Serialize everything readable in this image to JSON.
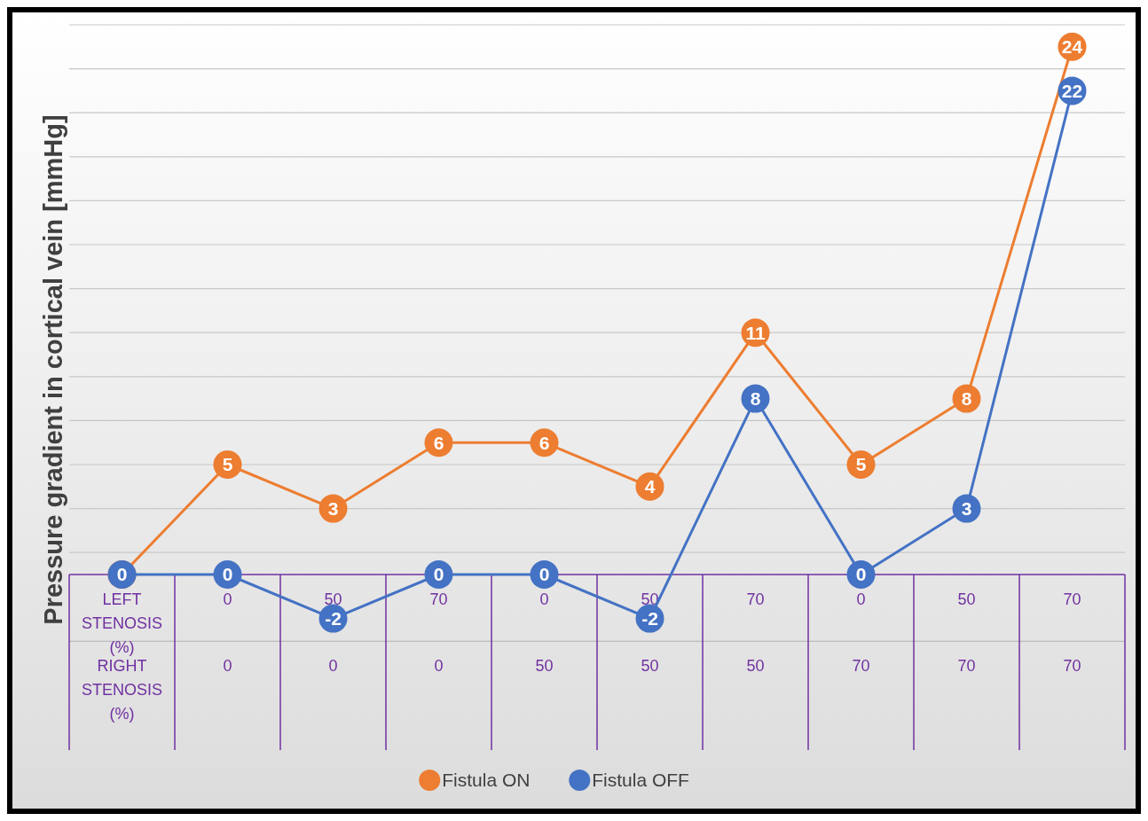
{
  "chart_data": {
    "type": "line",
    "ylabel": "Pressure gradient in cortical vein [mmHg]",
    "categories": [
      "LEFT STENOSIS (%)",
      "0",
      "50",
      "70",
      "0",
      "50",
      "70",
      "0",
      "50",
      "70"
    ],
    "annotations": [
      "RIGHT STENOSIS (%)",
      "0",
      "0",
      "0",
      "50",
      "50",
      "50",
      "70",
      "70",
      "70"
    ],
    "series": [
      {
        "name": "Fistula ON",
        "color": "#ed7d31",
        "values": [
          0,
          5,
          3,
          6,
          6,
          4,
          11,
          5,
          8,
          24
        ],
        "value_labels": [
          null,
          "5",
          "3",
          "6",
          "6",
          "4",
          "11",
          "5",
          "8",
          "24"
        ]
      },
      {
        "name": "Fistula OFF",
        "color": "#4472c4",
        "values": [
          0,
          0,
          -2,
          0,
          0,
          -2,
          8,
          0,
          3,
          22
        ],
        "value_labels": [
          "0",
          "0",
          "-2",
          "0",
          "0",
          "-2",
          "8",
          "0",
          "3",
          "22"
        ]
      }
    ],
    "yticks": [
      {
        "value": 1,
        "label": null
      },
      {
        "value": 3,
        "label": null
      },
      {
        "value": 5,
        "label": null
      },
      {
        "value": 7,
        "label": null
      },
      {
        "value": 9,
        "label": null
      },
      {
        "value": 11,
        "label": null
      },
      {
        "value": 13,
        "label": null
      },
      {
        "value": 15,
        "label": null
      },
      {
        "value": 17,
        "label": null
      },
      {
        "value": 19,
        "label": null
      },
      {
        "value": 21,
        "label": null
      },
      {
        "value": 23,
        "label": null
      },
      {
        "value": 25,
        "label": null
      }
    ],
    "grid": "y",
    "legend": "bottom",
    "marker": "circle",
    "line_style": "solid"
  }
}
